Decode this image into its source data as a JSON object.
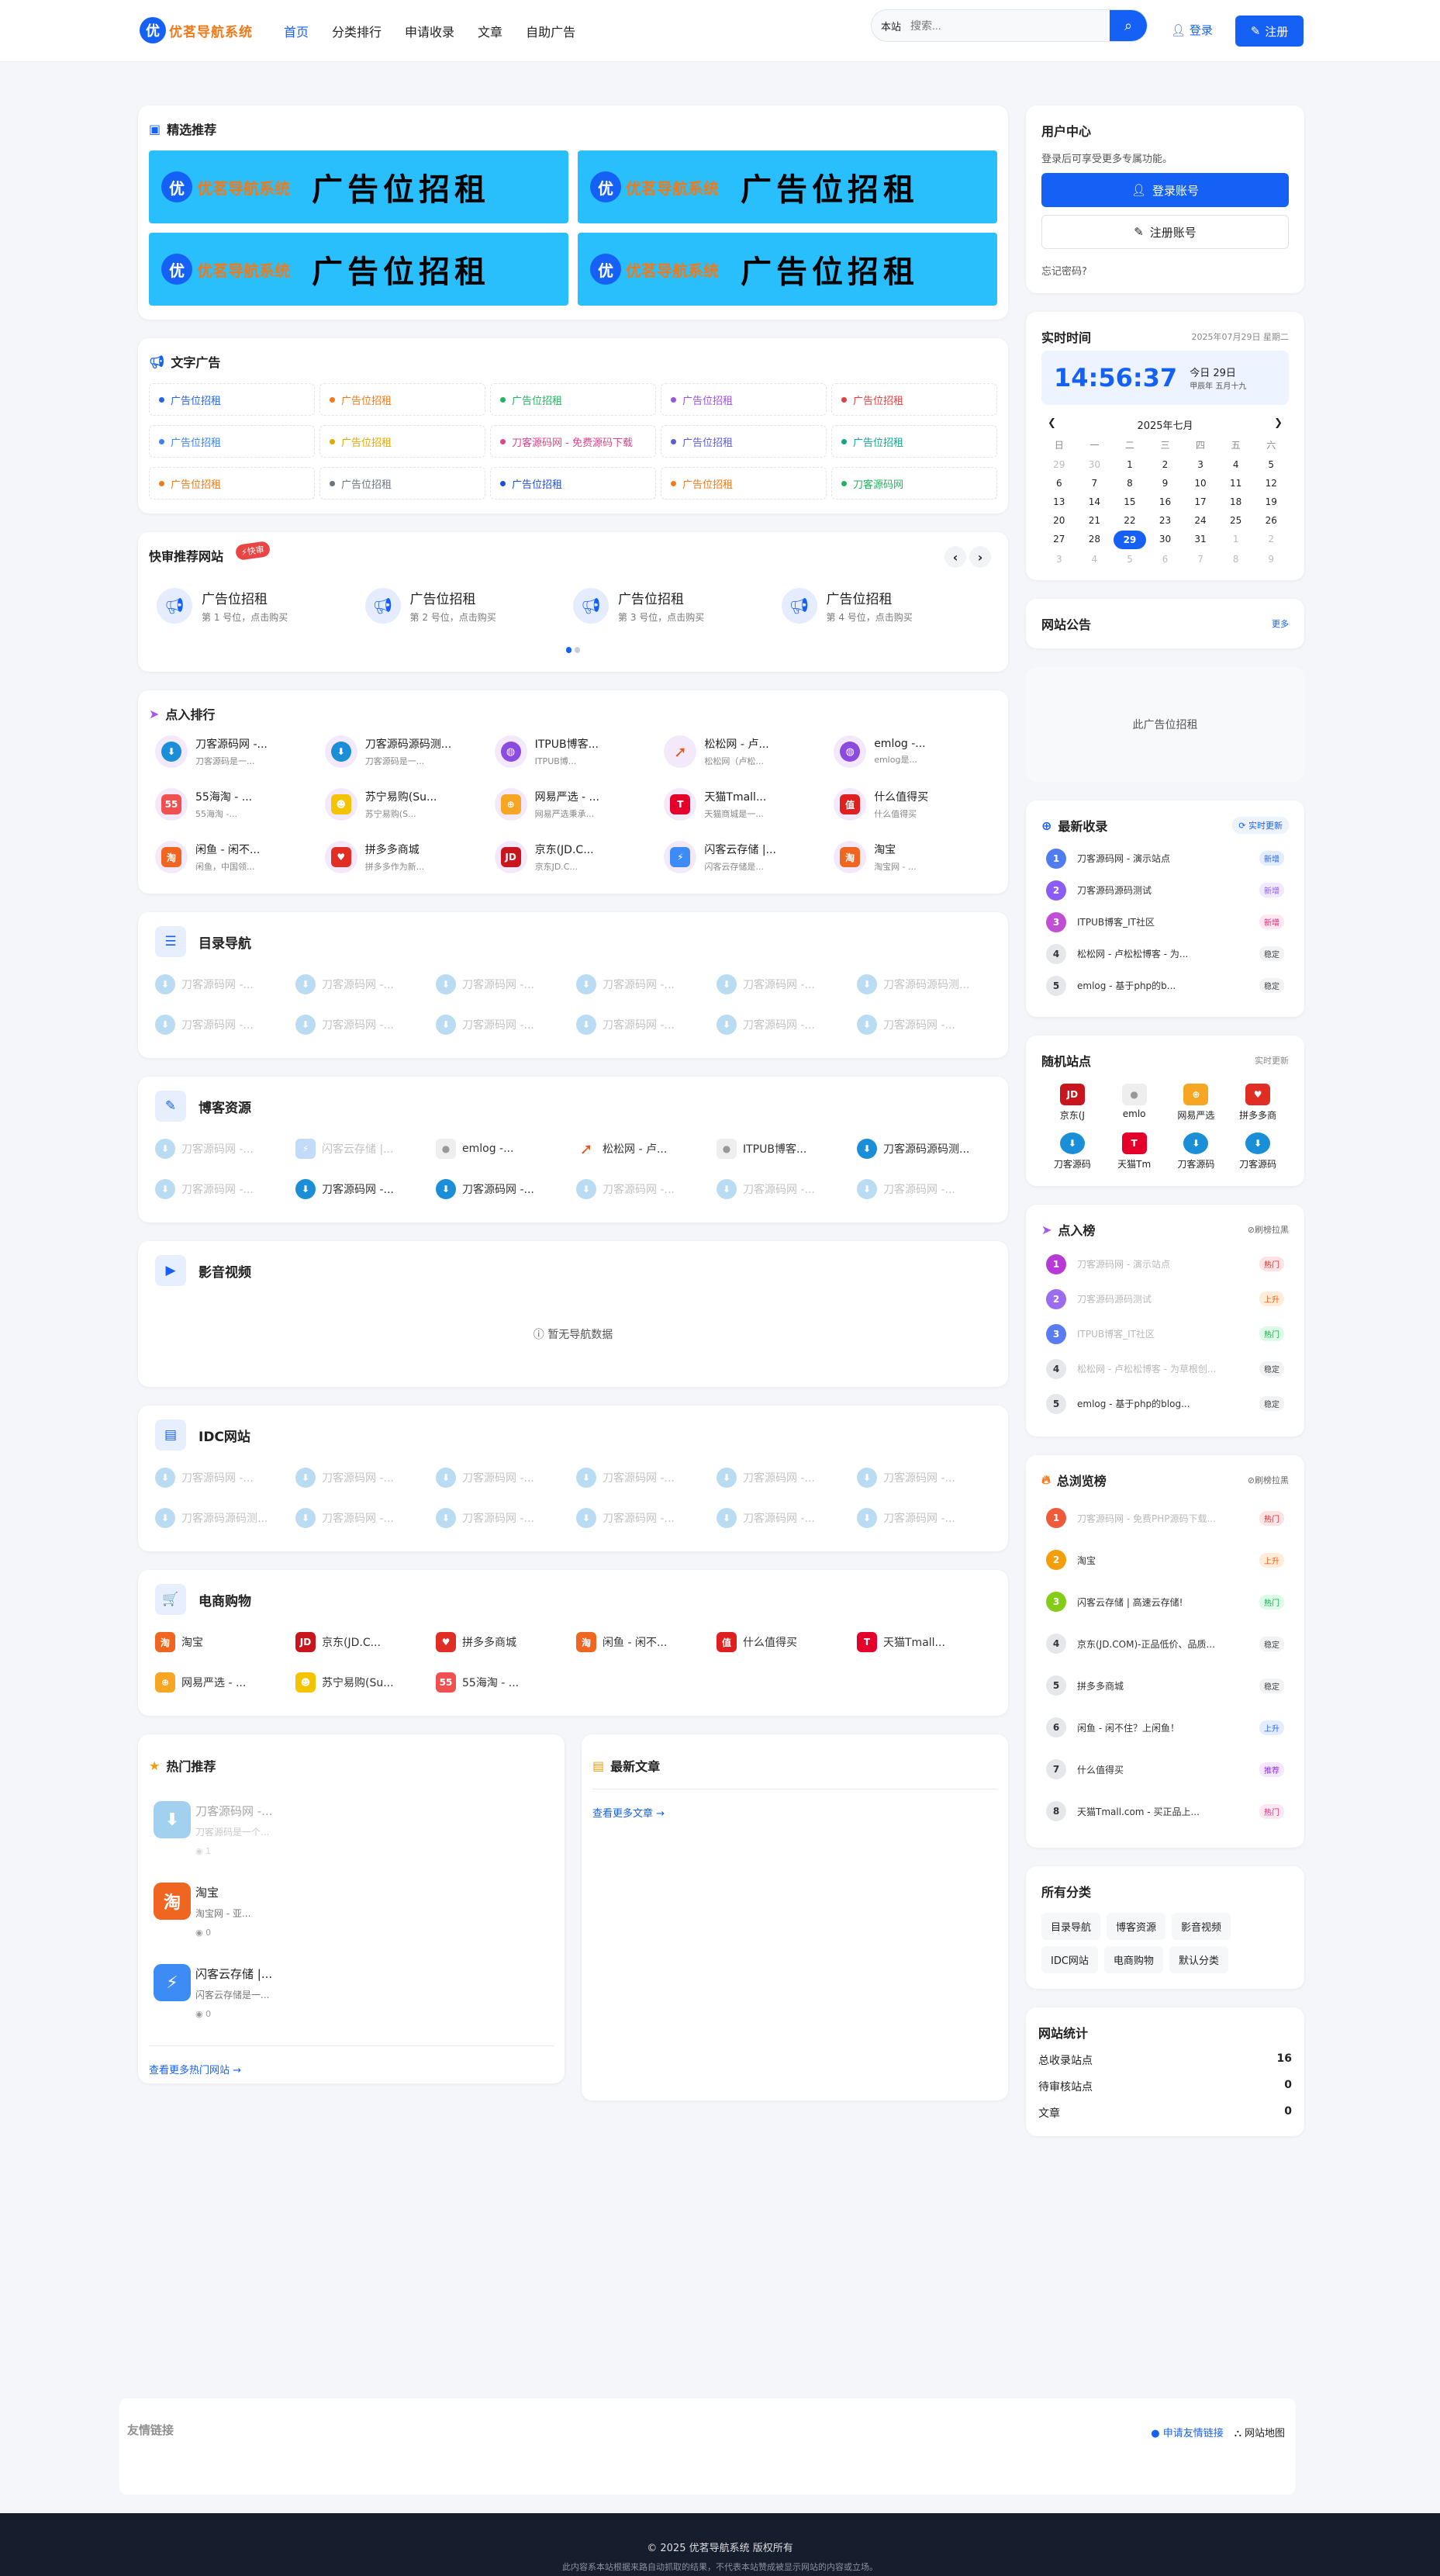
{
  "header": {
    "logo_badge": "优",
    "logo_text": "优茗导航系统",
    "nav": [
      "首页",
      "分类排行",
      "申请收录",
      "文章",
      "自助广告"
    ],
    "search_scope": "本站",
    "search_placeholder": "搜索...",
    "login": "登录",
    "register": "注册"
  },
  "featured": {
    "title": "精选推荐",
    "banners": [
      {
        "badge": "优",
        "brand": "优茗导航系统",
        "text": "广告位招租"
      },
      {
        "badge": "优",
        "brand": "优茗导航系统",
        "text": "广告位招租"
      },
      {
        "badge": "优",
        "brand": "优茗导航系统",
        "text": "广告位招租"
      },
      {
        "badge": "优",
        "brand": "优茗导航系统",
        "text": "广告位招租"
      }
    ]
  },
  "text_ads": {
    "title": "文字广告",
    "items": [
      {
        "label": "广告位招租",
        "color": "#2563eb"
      },
      {
        "label": "广告位招租",
        "color": "#f07a1a"
      },
      {
        "label": "广告位招租",
        "color": "#22b35e"
      },
      {
        "label": "广告位招租",
        "color": "#9b51e0"
      },
      {
        "label": "广告位招租",
        "color": "#e53e3e"
      },
      {
        "label": "广告位招租",
        "color": "#3b82f6"
      },
      {
        "label": "广告位招租",
        "color": "#e0a800"
      },
      {
        "label": "刀客源码网 - 免费源码下载",
        "color": "#e0438a"
      },
      {
        "label": "广告位招租",
        "color": "#5b5bd6"
      },
      {
        "label": "广告位招租",
        "color": "#14a38b"
      },
      {
        "label": "广告位招租",
        "color": "#f07a1a"
      },
      {
        "label": "广告位招租",
        "color": "#6b7280"
      },
      {
        "label": "广告位招租",
        "color": "#1d4ed8"
      },
      {
        "label": "广告位招租",
        "color": "#f07a1a"
      },
      {
        "label": "刀客源码网",
        "color": "#22b35e"
      }
    ]
  },
  "quick": {
    "title": "快审推荐网站",
    "badge": "快审",
    "items": [
      {
        "title": "广告位招租",
        "sub": "第 1 号位，点击购买"
      },
      {
        "title": "广告位招租",
        "sub": "第 2 号位，点击购买"
      },
      {
        "title": "广告位招租",
        "sub": "第 3 号位，点击购买"
      },
      {
        "title": "广告位招租",
        "sub": "第 4 号位，点击购买"
      }
    ]
  },
  "click_rank": {
    "title": "点入排行",
    "items": [
      {
        "icon": "cloud",
        "title": "刀客源码网 -...",
        "sub": "刀客源码是一..."
      },
      {
        "icon": "cloud",
        "title": "刀客源码源码测...",
        "sub": "刀客源码是一..."
      },
      {
        "icon": "globe",
        "title": "ITPUB博客...",
        "sub": "ITPUB博..."
      },
      {
        "icon": "bird",
        "title": "松松网 - 卢...",
        "sub": "松松网（卢松..."
      },
      {
        "icon": "globe",
        "title": "emlog -...",
        "sub": "emlog是..."
      },
      {
        "icon": "55",
        "title": "55海淘 - ...",
        "sub": "55海淘 -..."
      },
      {
        "icon": "suning",
        "title": "苏宁易购(Su...",
        "sub": "苏宁易购(S..."
      },
      {
        "icon": "wangyi",
        "title": "网易严选 - ...",
        "sub": "网易严选秉承..."
      },
      {
        "icon": "tmall",
        "title": "天猫Tmall...",
        "sub": "天猫商城是一..."
      },
      {
        "icon": "smzdm",
        "title": "什么值得买",
        "sub": "什么值得买"
      },
      {
        "icon": "taobao",
        "title": "闲鱼 - 闲不...",
        "sub": "闲鱼，中国领..."
      },
      {
        "icon": "pdd",
        "title": "拼多多商城",
        "sub": "拼多多作为新..."
      },
      {
        "icon": "jd",
        "title": "京东(JD.C...",
        "sub": "京东JD.C..."
      },
      {
        "icon": "shanke",
        "title": "闪客云存储 |...",
        "sub": "闪客云存储是..."
      },
      {
        "icon": "taobao",
        "title": "淘宝",
        "sub": "淘宝网 - ..."
      }
    ]
  },
  "sections": [
    {
      "title": "目录导航",
      "icon": "☰",
      "items": [
        {
          "icon": "cloud",
          "title": "刀客源码网 -...",
          "faded": true
        },
        {
          "icon": "cloud",
          "title": "刀客源码网 -...",
          "faded": true
        },
        {
          "icon": "cloud",
          "title": "刀客源码网 -...",
          "faded": true
        },
        {
          "icon": "cloud",
          "title": "刀客源码网 -...",
          "faded": true
        },
        {
          "icon": "cloud",
          "title": "刀客源码网 -...",
          "faded": true
        },
        {
          "icon": "cloud",
          "title": "刀客源码源码测...",
          "faded": true
        },
        {
          "icon": "cloud",
          "title": "刀客源码网 -...",
          "faded": true
        },
        {
          "icon": "cloud",
          "title": "刀客源码网 -...",
          "faded": true
        },
        {
          "icon": "cloud",
          "title": "刀客源码网 -...",
          "faded": true
        },
        {
          "icon": "cloud",
          "title": "刀客源码网 -...",
          "faded": true
        },
        {
          "icon": "cloud",
          "title": "刀客源码网 -...",
          "faded": true
        },
        {
          "icon": "cloud",
          "title": "刀客源码网 -...",
          "faded": true
        }
      ]
    },
    {
      "title": "博客资源",
      "icon": "✎",
      "items": [
        {
          "icon": "cloud",
          "title": "刀客源码网 -...",
          "faded": true
        },
        {
          "icon": "shanke",
          "title": "闪客云存储 |...",
          "faded": true
        },
        {
          "icon": "emlog",
          "title": "emlog -...",
          "faded": false
        },
        {
          "icon": "bird",
          "title": "松松网 - 卢...",
          "faded": false
        },
        {
          "icon": "emlog",
          "title": "ITPUB博客...",
          "faded": false
        },
        {
          "icon": "cloud",
          "title": "刀客源码源码测...",
          "faded": false
        },
        {
          "icon": "cloud",
          "title": "刀客源码网 -...",
          "faded": true
        },
        {
          "icon": "cloud",
          "title": "刀客源码网 -...",
          "faded": false
        },
        {
          "icon": "cloud",
          "title": "刀客源码网 -...",
          "faded": false
        },
        {
          "icon": "cloud",
          "title": "刀客源码网 -...",
          "faded": true
        },
        {
          "icon": "cloud",
          "title": "刀客源码网 -...",
          "faded": true
        },
        {
          "icon": "cloud",
          "title": "刀客源码网 -...",
          "faded": true
        }
      ]
    },
    {
      "title": "影音视频",
      "icon": "▶",
      "empty": "暂无导航数据",
      "items": []
    },
    {
      "title": "IDC网站",
      "icon": "▤",
      "items": [
        {
          "icon": "cloud",
          "title": "刀客源码网 -...",
          "faded": true
        },
        {
          "icon": "cloud",
          "title": "刀客源码网 -...",
          "faded": true
        },
        {
          "icon": "cloud",
          "title": "刀客源码网 -...",
          "faded": true
        },
        {
          "icon": "cloud",
          "title": "刀客源码网 -...",
          "faded": true
        },
        {
          "icon": "cloud",
          "title": "刀客源码网 -...",
          "faded": true
        },
        {
          "icon": "cloud",
          "title": "刀客源码网 -...",
          "faded": true
        },
        {
          "icon": "cloud",
          "title": "刀客源码源码测...",
          "faded": true
        },
        {
          "icon": "cloud",
          "title": "刀客源码网 -...",
          "faded": true
        },
        {
          "icon": "cloud",
          "title": "刀客源码网 -...",
          "faded": true
        },
        {
          "icon": "cloud",
          "title": "刀客源码网 -...",
          "faded": true
        },
        {
          "icon": "cloud",
          "title": "刀客源码网 -...",
          "faded": true
        },
        {
          "icon": "cloud",
          "title": "刀客源码网 -...",
          "faded": true
        }
      ]
    },
    {
      "title": "电商购物",
      "icon": "🛒",
      "items": [
        {
          "icon": "taobao",
          "title": "淘宝",
          "faded": false
        },
        {
          "icon": "jd",
          "title": "京东(JD.C...",
          "faded": false
        },
        {
          "icon": "pdd",
          "title": "拼多多商城",
          "faded": false
        },
        {
          "icon": "taobao",
          "title": "闲鱼 - 闲不...",
          "faded": false
        },
        {
          "icon": "smzdm",
          "title": "什么值得买",
          "faded": false
        },
        {
          "icon": "tmall",
          "title": "天猫Tmall...",
          "faded": false
        },
        {
          "icon": "wangyi",
          "title": "网易严选 - ...",
          "faded": false
        },
        {
          "icon": "suning",
          "title": "苏宁易购(Su...",
          "faded": false
        },
        {
          "icon": "55",
          "title": "55海淘 - ...",
          "faded": false
        }
      ]
    }
  ],
  "hot": {
    "title": "热门推荐",
    "items": [
      {
        "icon": "cloud",
        "title": "刀客源码网 -...",
        "sub": "刀客源码是一个...",
        "views": "1",
        "faded": true
      },
      {
        "icon": "taobao",
        "title": "淘宝",
        "sub": "淘宝网 - 亚...",
        "views": "0",
        "faded": false
      },
      {
        "icon": "shanke",
        "title": "闪客云存储 |...",
        "sub": "闪客云存储是一...",
        "views": "0",
        "faded": false
      }
    ],
    "more": "查看更多热门网站 →"
  },
  "articles": {
    "title": "最新文章",
    "more": "查看更多文章 →"
  },
  "user_center": {
    "title": "用户中心",
    "desc": "登录后可享受更多专属功能。",
    "login": "登录账号",
    "register": "注册账号",
    "forgot": "忘记密码?"
  },
  "clock": {
    "title": "实时时间",
    "date": "2025年07月29日 星期二",
    "time": "14:56:37",
    "today": "今日 29日",
    "lunar": "甲辰年 五月十九",
    "month": "2025年七月",
    "weekdays": [
      "日",
      "一",
      "二",
      "三",
      "四",
      "五",
      "六"
    ],
    "days": [
      {
        "d": "29",
        "o": true
      },
      {
        "d": "30",
        "o": true
      },
      {
        "d": "1"
      },
      {
        "d": "2"
      },
      {
        "d": "3"
      },
      {
        "d": "4"
      },
      {
        "d": "5"
      },
      {
        "d": "6"
      },
      {
        "d": "7"
      },
      {
        "d": "8"
      },
      {
        "d": "9"
      },
      {
        "d": "10"
      },
      {
        "d": "11"
      },
      {
        "d": "12"
      },
      {
        "d": "13"
      },
      {
        "d": "14"
      },
      {
        "d": "15"
      },
      {
        "d": "16"
      },
      {
        "d": "17"
      },
      {
        "d": "18"
      },
      {
        "d": "19"
      },
      {
        "d": "20"
      },
      {
        "d": "21"
      },
      {
        "d": "22"
      },
      {
        "d": "23"
      },
      {
        "d": "24"
      },
      {
        "d": "25"
      },
      {
        "d": "26"
      },
      {
        "d": "27"
      },
      {
        "d": "28"
      },
      {
        "d": "29",
        "today": true
      },
      {
        "d": "30"
      },
      {
        "d": "31"
      },
      {
        "d": "1",
        "o": true
      },
      {
        "d": "2",
        "o": true
      },
      {
        "d": "3",
        "o": true
      },
      {
        "d": "4",
        "o": true
      },
      {
        "d": "5",
        "o": true
      },
      {
        "d": "6",
        "o": true
      },
      {
        "d": "7",
        "o": true
      },
      {
        "d": "8",
        "o": true
      },
      {
        "d": "9",
        "o": true
      }
    ]
  },
  "notice": {
    "title": "网站公告",
    "more": "更多"
  },
  "side_ad": "此广告位招租",
  "latest": {
    "title": "最新收录",
    "pill": "实时更新",
    "items": [
      {
        "n": "1",
        "title": "刀客源码网 - 演示站点",
        "tag": "新增",
        "c": "#4f7df0",
        "tc": "#2563eb",
        "tb": "#e4edff"
      },
      {
        "n": "2",
        "title": "刀客源码源码测试",
        "tag": "新增",
        "c": "#8b5cf6",
        "tc": "#8b5cf6",
        "tb": "#f1e9fe"
      },
      {
        "n": "3",
        "title": "ITPUB博客_IT社区",
        "tag": "新增",
        "c": "#c04fd6",
        "tc": "#db2777",
        "tb": "#fde7f1"
      },
      {
        "n": "4",
        "title": "松松网 - 卢松松博客 - 为...",
        "tag": "稳定",
        "c": "",
        "tc": "#444",
        "tb": "#f1f2f4"
      },
      {
        "n": "5",
        "title": "emlog - 基于php的b...",
        "tag": "稳定",
        "c": "",
        "tc": "#444",
        "tb": "#f1f2f4"
      }
    ]
  },
  "random": {
    "title": "随机站点",
    "more": "实时更新",
    "items": [
      {
        "icon": "jd",
        "label": "京东(J"
      },
      {
        "icon": "emlog",
        "label": "emlo"
      },
      {
        "icon": "wangyi",
        "label": "网易严选"
      },
      {
        "icon": "pdd",
        "label": "拼多多商"
      },
      {
        "icon": "cloud",
        "label": "刀客源码"
      },
      {
        "icon": "tmall",
        "label": "天猫Tm"
      },
      {
        "icon": "cloud",
        "label": "刀客源码"
      },
      {
        "icon": "cloud",
        "label": "刀客源码"
      }
    ]
  },
  "click_board": {
    "title": "点入榜",
    "more": "刷榜拉黑",
    "items": [
      {
        "n": "1",
        "title": "刀客源码网 - 演示站点",
        "tag": "热门",
        "c": "#b83ad6",
        "tc": "#dc2626",
        "tb": "#fde4e4",
        "faded": true
      },
      {
        "n": "2",
        "title": "刀客源码源码测试",
        "tag": "上升",
        "c": "#9b6cf0",
        "tc": "#ea580c",
        "tb": "#ffedd9",
        "faded": true
      },
      {
        "n": "3",
        "title": "ITPUB博客_IT社区",
        "tag": "热门",
        "c": "#5b7cf0",
        "tc": "#16a34a",
        "tb": "#dcfce7",
        "faded": true
      },
      {
        "n": "4",
        "title": "松松网 - 卢松松博客 - 为草根创...",
        "tag": "稳定",
        "c": "",
        "tc": "#444",
        "tb": "#f1f2f4",
        "faded": true
      },
      {
        "n": "5",
        "title": "emlog - 基于php的blog...",
        "tag": "稳定",
        "c": "",
        "tc": "#444",
        "tb": "#f1f2f4"
      }
    ]
  },
  "views_board": {
    "title": "总浏览榜",
    "more": "刷榜拉黑",
    "items": [
      {
        "n": "1",
        "title": "刀客源码网 - 免费PHP源码下载...",
        "tag": "热门",
        "c": "#ef5a3a",
        "tc": "#dc2626",
        "tb": "#fde4e4",
        "faded": true
      },
      {
        "n": "2",
        "title": "淘宝",
        "tag": "上升",
        "c": "#f59e0b",
        "tc": "#ea580c",
        "tb": "#ffedd9"
      },
      {
        "n": "3",
        "title": "闪客云存储 | 高速云存储!",
        "tag": "热门",
        "c": "#84cc16",
        "tc": "#16a34a",
        "tb": "#dcfce7"
      },
      {
        "n": "4",
        "title": "京东(JD.COM)-正品低价、品质...",
        "tag": "稳定",
        "c": "",
        "tc": "#444",
        "tb": "#f1f2f4"
      },
      {
        "n": "5",
        "title": "拼多多商城",
        "tag": "稳定",
        "c": "",
        "tc": "#444",
        "tb": "#f1f2f4"
      },
      {
        "n": "6",
        "title": "闲鱼 - 闲不住？上闲鱼！",
        "tag": "上升",
        "c": "",
        "tc": "#2563eb",
        "tb": "#e4edff"
      },
      {
        "n": "7",
        "title": "什么值得买",
        "tag": "推荐",
        "c": "",
        "tc": "#9333ea",
        "tb": "#f3e8ff"
      },
      {
        "n": "8",
        "title": "天猫Tmall.com - 买正品上...",
        "tag": "热门",
        "c": "",
        "tc": "#db2777",
        "tb": "#fde7f1"
      }
    ]
  },
  "categories": {
    "title": "所有分类",
    "items": [
      "目录导航",
      "博客资源",
      "影音视频",
      "IDC网站",
      "电商购物",
      "默认分类"
    ]
  },
  "stats": {
    "title": "网站统计",
    "rows": [
      {
        "label": "总收录站点",
        "value": "16"
      },
      {
        "label": "待审核站点",
        "value": "0"
      },
      {
        "label": "文章",
        "value": "0"
      }
    ]
  },
  "friends": {
    "title": "友情链接",
    "apply": "申请友情链接",
    "sitemap": "网站地图"
  },
  "footer": {
    "copyright": "© 2025 优茗导航系统 版权所有",
    "disclaimer": "此内容系本站根据来路自动抓取的结果，不代表本站赞成被显示网站的内容或立场。"
  }
}
